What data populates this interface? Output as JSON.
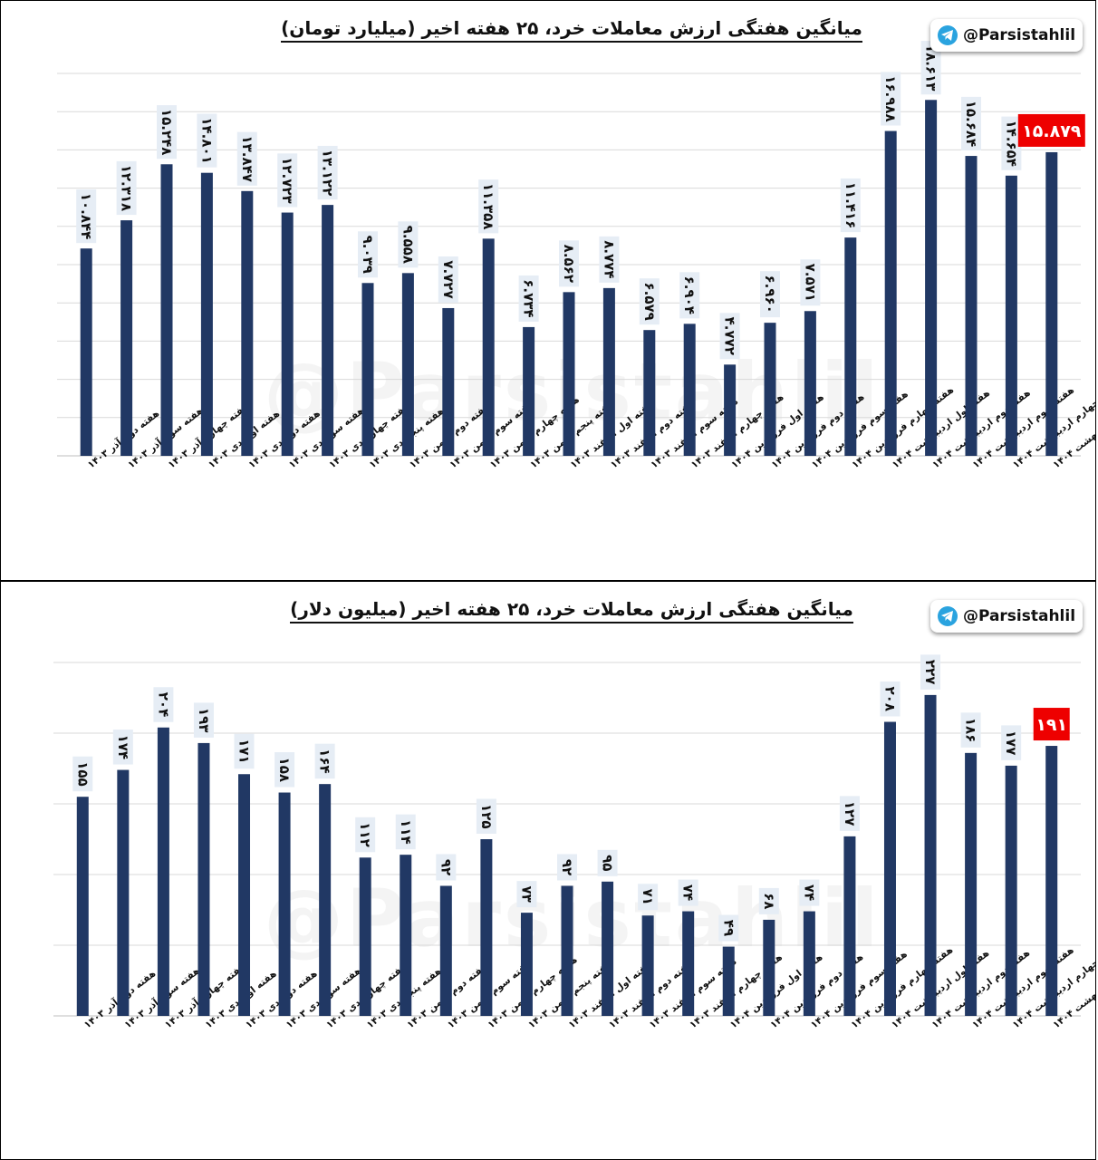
{
  "watermark": "@Parsistahlil",
  "badge_handle": "@Parsistahlil",
  "colors": {
    "bar": "#213864",
    "label_bg": "#e6edf5",
    "highlight": "#ee0000"
  },
  "icons": {
    "badge": "telegram-icon"
  },
  "chart_data": [
    {
      "type": "bar",
      "title": "میانگین هفتگی ارزش معاملات خرد، ۲۵ هفته اخیر (میلیارد تومان)",
      "categories": [
        "هفته دوم آذر ۱۴۰۳",
        "هفته سوم آذر ۱۴۰۳",
        "هفته چهارم آذر ۱۴۰۳",
        "هفته اول دی ۱۴۰۳",
        "هفته دوم دی ۱۴۰۳",
        "هفته سوم دی ۱۴۰۳",
        "هفته چهارم دی ۱۴۰۳",
        "هفته پنجم دی ۱۴۰۳",
        "هفته دوم بهمن ۱۴۰۳",
        "هفته سوم بهمن ۱۴۰۳",
        "هفته چهارم بهمن ۱۴۰۳",
        "هفته پنجم بهمن ۱۴۰۳",
        "هفته اول اسفند ۱۴۰۳",
        "هفته دوم اسفند ۱۴۰۳",
        "هفته سوم اسفند ۱۴۰۳",
        "هفته چهارم اسفند ۱۴۰۳",
        "هفته اول فروردین ۱۴۰۴",
        "هفته دوم فروردین ۱۴۰۴",
        "هفته سوم فروردین ۱۴۰۴",
        "هفته چهارم فروردین ۱۴۰۴",
        "هفته اول اردیبهشت ۱۴۰۴",
        "هفته دوم اردیبهشت ۱۴۰۴",
        "هفته سوم اردیبهشت ۱۴۰۴",
        "هفته چهارم اردیبهشت ۱۴۰۴",
        "هفته پنجم اردیبهشت ۱۴۰۴"
      ],
      "values": [
        10.844,
        12.318,
        15.248,
        14.801,
        13.847,
        12.723,
        13.122,
        9.039,
        9.558,
        7.727,
        11.358,
        6.734,
        8.562,
        8.774,
        6.579,
        6.904,
        4.772,
        6.96,
        7.571,
        11.416,
        16.988,
        18.613,
        15.684,
        14.654,
        15.879
      ],
      "value_labels": [
        "۱۰.۸۴۴",
        "۱۲.۳۱۸",
        "۱۵.۲۴۸",
        "۱۴.۸۰۱",
        "۱۳.۸۴۷",
        "۱۲.۷۲۳",
        "۱۳.۱۲۲",
        "۹.۰۳۹",
        "۹.۵۵۸",
        "۷.۷۲۷",
        "۱۱.۳۵۸",
        "۶.۷۳۴",
        "۸.۵۶۲",
        "۸.۷۷۴",
        "۶.۵۷۹",
        "۶.۹۰۴",
        "۴.۷۷۲",
        "۶.۹۶۰",
        "۷.۵۷۱",
        "۱۱.۴۱۶",
        "۱۶.۹۸۸",
        "۱۸.۶۱۳",
        "۱۵.۶۸۴",
        "۱۴.۶۵۴",
        "۱۵.۸۷۹"
      ],
      "highlight_label": "15.879",
      "ylim": [
        0,
        20
      ],
      "grid": true,
      "legend": "none"
    },
    {
      "type": "bar",
      "title": "میانگین هفتگی ارزش معاملات خرد، ۲۵ هفته اخیر (میلیون دلار)",
      "categories": [
        "هفته دوم آذر ۱۴۰۳",
        "هفته سوم آذر ۱۴۰۳",
        "هفته چهارم آذر ۱۴۰۳",
        "هفته اول دی ۱۴۰۳",
        "هفته دوم دی ۱۴۰۳",
        "هفته سوم دی ۱۴۰۳",
        "هفته چهارم دی ۱۴۰۳",
        "هفته پنجم دی ۱۴۰۳",
        "هفته دوم بهمن ۱۴۰۳",
        "هفته سوم بهمن ۱۴۰۳",
        "هفته چهارم بهمن ۱۴۰۳",
        "هفته پنجم بهمن ۱۴۰۳",
        "هفته اول اسفند ۱۴۰۳",
        "هفته دوم اسفند ۱۴۰۳",
        "هفته سوم اسفند ۱۴۰۳",
        "هفته چهارم اسفند ۱۴۰۳",
        "هفته اول فروردین ۱۴۰۴",
        "هفته دوم فروردین ۱۴۰۴",
        "هفته سوم فروردین ۱۴۰۴",
        "هفته چهارم فروردین ۱۴۰۴",
        "هفته اول اردیبهشت ۱۴۰۴",
        "هفته دوم اردیبهشت ۱۴۰۴",
        "هفته سوم اردیبهشت ۱۴۰۴",
        "هفته چهارم اردیبهشت ۱۴۰۴",
        "هفته پنجم اردیبهشت ۱۴۰۴"
      ],
      "values": [
        155,
        174,
        204,
        193,
        171,
        158,
        164,
        112,
        114,
        92,
        125,
        73,
        92,
        95,
        71,
        74,
        49,
        68,
        74,
        127,
        208,
        227,
        186,
        177,
        191
      ],
      "value_labels": [
        "۱۵۵",
        "۱۷۴",
        "۲۰۴",
        "۱۹۳",
        "۱۷۱",
        "۱۵۸",
        "۱۶۴",
        "۱۱۲",
        "۱۱۴",
        "۹۲",
        "۱۲۵",
        "۷۳",
        "۹۲",
        "۹۵",
        "۷۱",
        "۷۴",
        "۴۹",
        "۶۸",
        "۷۴",
        "۱۲۷",
        "۲۰۸",
        "۲۲۷",
        "۱۸۶",
        "۱۷۷",
        "۱۹۱"
      ],
      "highlight_label": "191",
      "ylim": [
        0,
        250
      ],
      "grid": true,
      "legend": "none"
    }
  ]
}
